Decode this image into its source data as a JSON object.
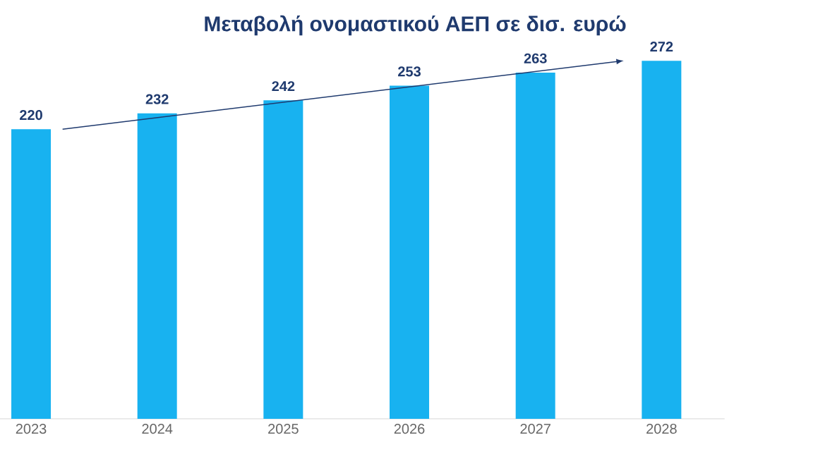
{
  "chart_data": {
    "type": "bar",
    "title": "Μεταβολή ονομαστικού ΑΕΠ σε δισ. ευρώ",
    "categories": [
      "2023",
      "2024",
      "2025",
      "2026",
      "2027",
      "2028"
    ],
    "values": [
      220,
      232,
      242,
      253,
      263,
      272
    ],
    "color": "#18b2f0",
    "data_labels": true,
    "tick_labels": "x"
  }
}
